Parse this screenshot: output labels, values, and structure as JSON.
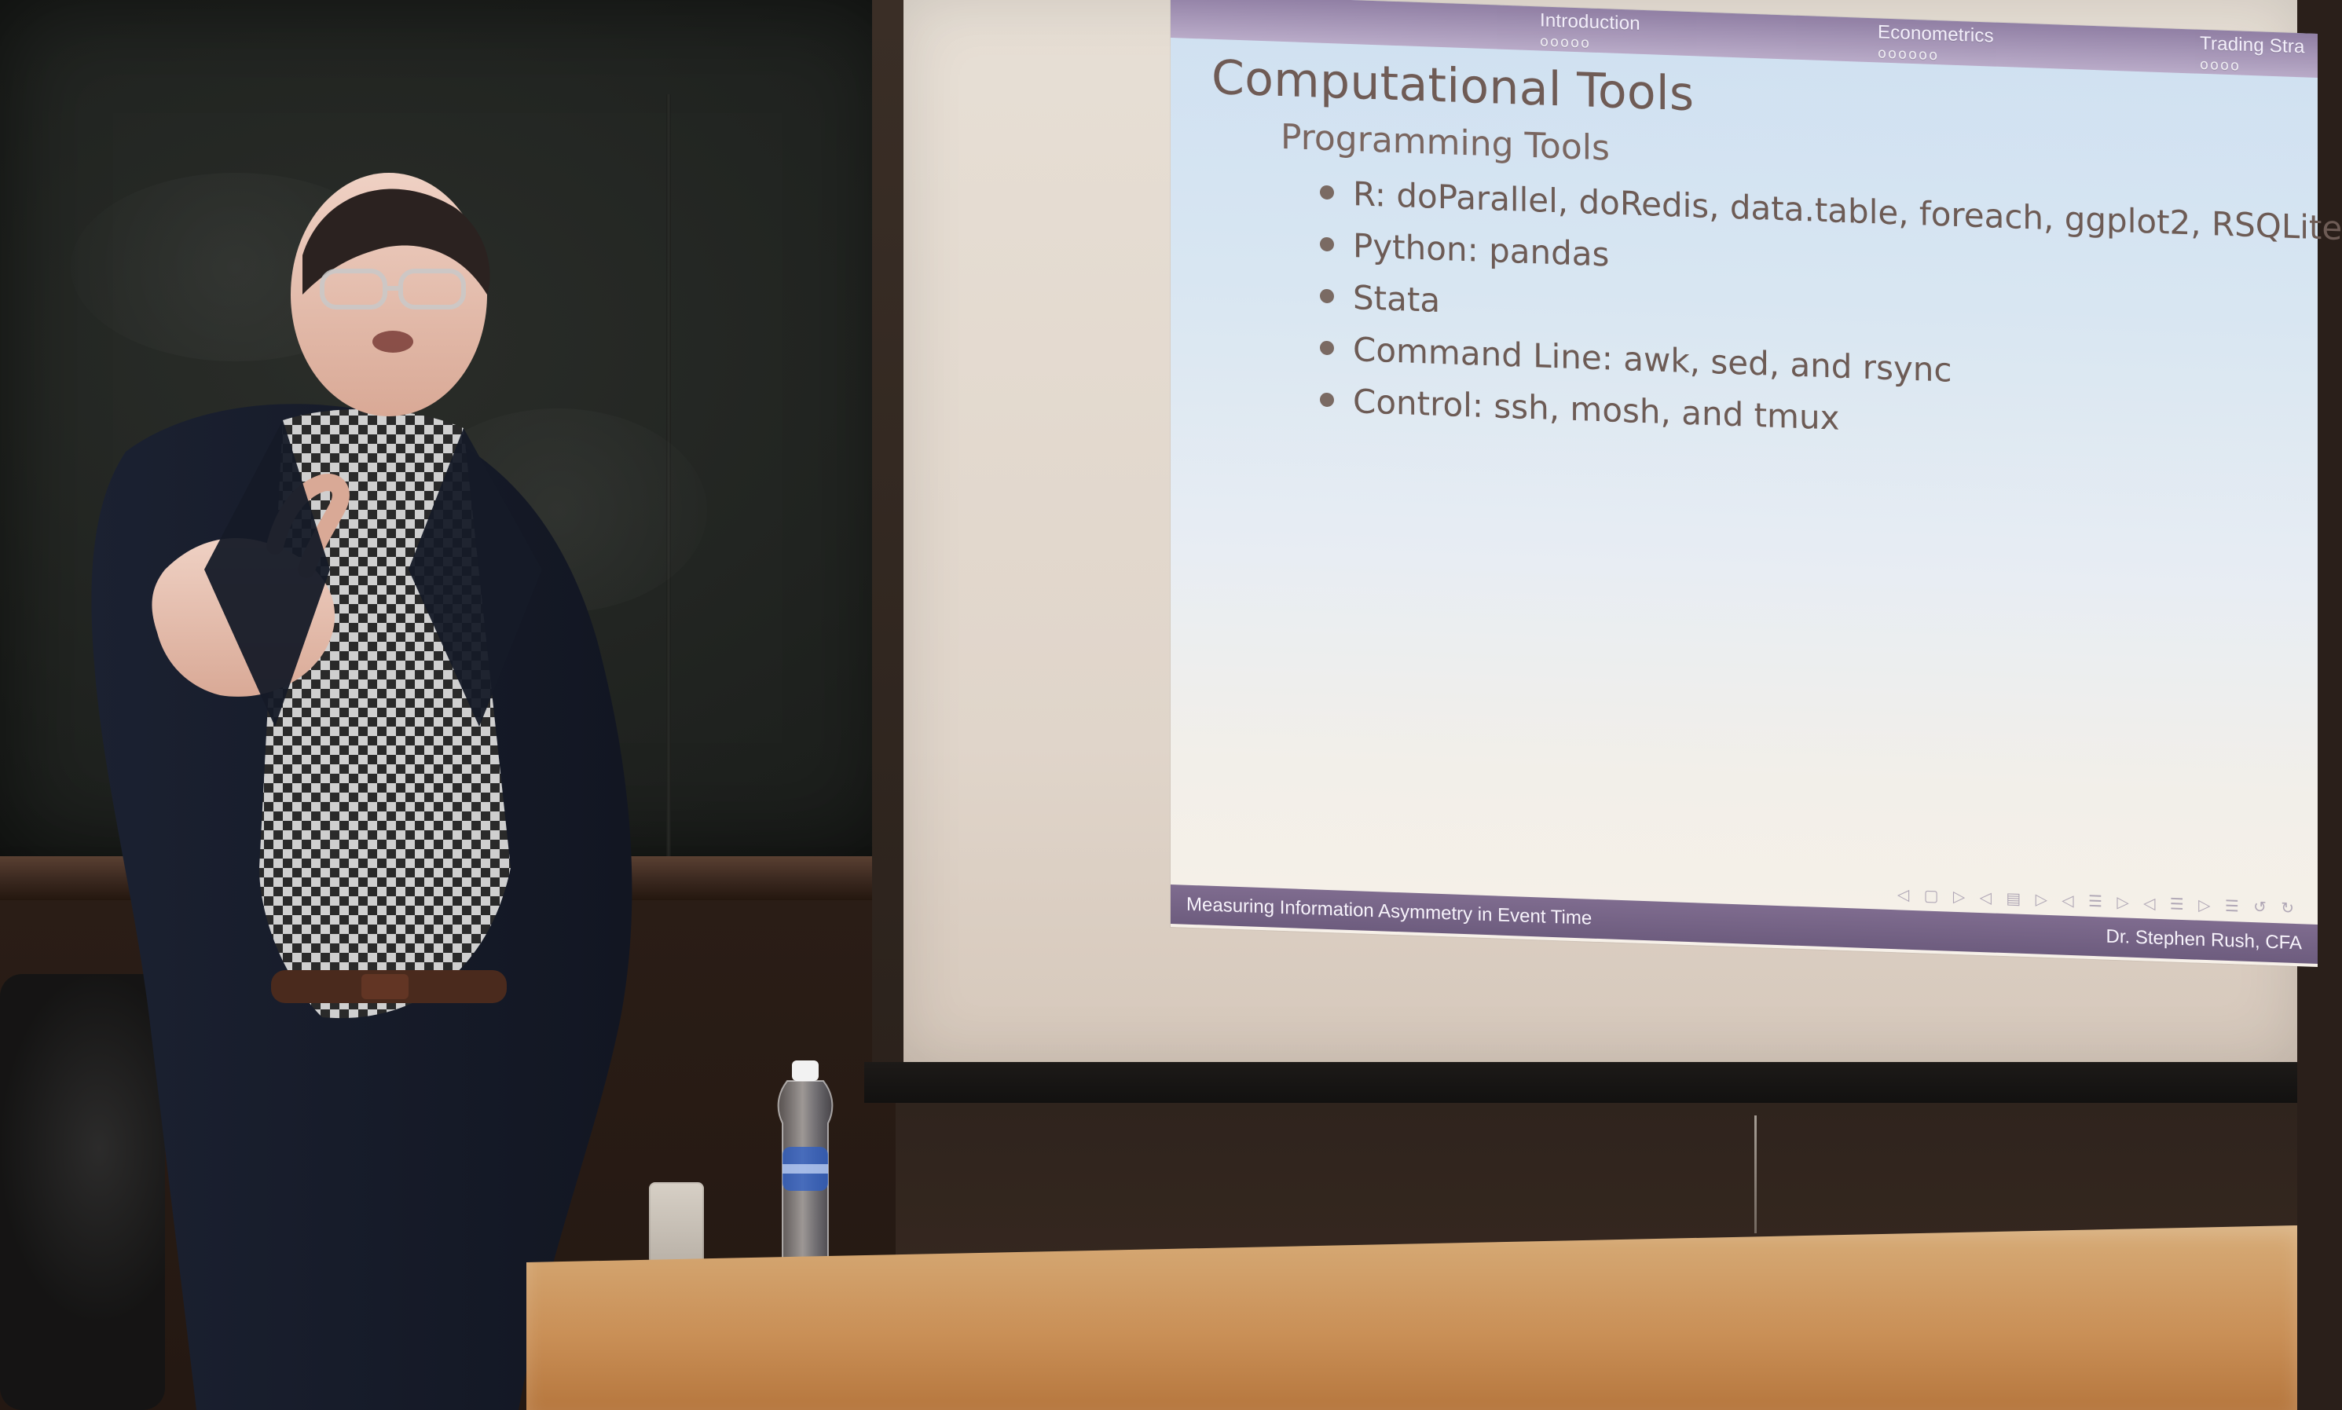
{
  "slide": {
    "nav": [
      {
        "label": "Introduction",
        "dots": "ooooo"
      },
      {
        "label": "Econometrics",
        "dots": "oooooo"
      },
      {
        "label": "Trading Stra",
        "dots": "oooo"
      }
    ],
    "title": "Computational Tools",
    "subtitle": "Programming Tools",
    "bullets": [
      "R: doParallel, doRedis, data.table, foreach, ggplot2, RSQLite",
      "Python: pandas",
      "Stata",
      "Command Line: awk, sed, and rsync",
      "Control: ssh, mosh, and tmux"
    ],
    "footer": {
      "left": "Measuring Information Asymmetry in Event Time",
      "right": "Dr. Stephen Rush, CFA"
    }
  },
  "colors": {
    "slide_header": "#8d7aa0",
    "slide_footer": "#7f6c8f",
    "slide_text": "#6d5b55",
    "desk": "#c98f56",
    "chalkboard": "#1f221f"
  }
}
